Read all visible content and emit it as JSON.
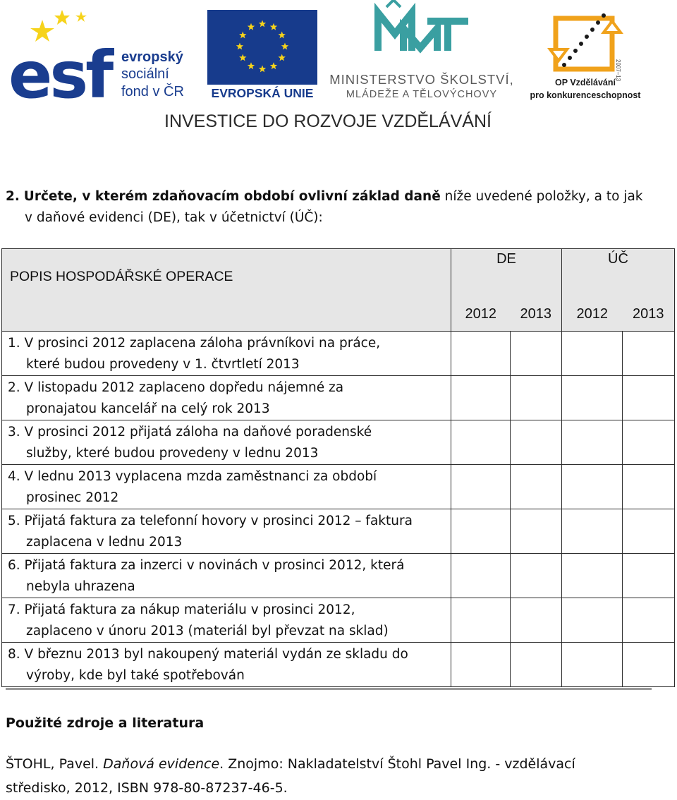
{
  "header": {
    "esf_line1": "evropský",
    "esf_line2": "sociální",
    "esf_line3": "fond v ČR",
    "eu_label": "EVROPSKÁ UNIE",
    "msmt_line1": "MINISTERSTVO ŠKOLSTVÍ,",
    "msmt_line2": "MLÁDEŽE A TĚLOVÝCHOVY",
    "op_line1": "OP Vzdělávání",
    "op_line2": "pro konkurenceschopnost",
    "op_years": "2007–13",
    "investice": "INVESTICE DO ROZVOJE VZDĚLÁVÁNÍ",
    "colors": {
      "esf_blue": "#1a3d8f",
      "eu_blue": "#173b8c",
      "eu_star": "#f6d31b",
      "msmt_teal": "#3a9fa1",
      "op_orange": "#f0a21b"
    },
    "icons": [
      "esf-logo",
      "eu-flag-logo",
      "msmt-logo",
      "op-vzdelavani-logo"
    ]
  },
  "question": {
    "number": "2.",
    "bold_text": "Určete, v kterém zdaňovacím období ovlivní základ daně",
    "rest_line1": " níže uvedené položky, a to jak",
    "line2": "v daňové evidenci (DE), tak v účetnictví (ÚČ):"
  },
  "table": {
    "header_desc": "POPIS HOSPODÁŘSKÉ OPERACE",
    "group_de": "DE",
    "group_uc": "ÚČ",
    "years": [
      "2012",
      "2013",
      "2012",
      "2013"
    ],
    "rows": [
      {
        "line1": "1. V prosinci 2012 zaplacena záloha právníkovi na práce,",
        "line2": "které budou provedeny v 1. čtvrtletí 2013"
      },
      {
        "line1": "2. V listopadu 2012 zaplaceno dopředu nájemné za",
        "line2": "pronajatou kancelář na celý rok 2013"
      },
      {
        "line1": "3. V prosinci 2012 přijatá záloha na daňové poradenské",
        "line2": "služby, které budou provedeny v lednu 2013"
      },
      {
        "line1": "4. V lednu 2013 vyplacena mzda zaměstnanci za období",
        "line2": "prosinec 2012"
      },
      {
        "line1": "5. Přijatá faktura za telefonní hovory v prosinci 2012 – faktura",
        "line2": "zaplacena v lednu 2013"
      },
      {
        "line1": "6. Přijatá faktura za inzerci v novinách v prosinci 2012, která",
        "line2": "nebyla uhrazena"
      },
      {
        "line1": "7. Přijatá faktura za nákup materiálu v prosinci 2012,",
        "line2": "zaplaceno v únoru 2013 (materiál byl převzat na sklad)"
      },
      {
        "line1": "8. V březnu 2013 byl nakoupený materiál vydán ze skladu do",
        "line2": "výroby, kde byl také spotřebován"
      }
    ]
  },
  "sources": {
    "heading": "Použité zdroje a literatura",
    "author": "ŠTOHL, Pavel. ",
    "title": "Daňová evidence",
    "rest_line1": ". Znojmo: Nakladatelství Štohl Pavel Ing. - vzdělávací",
    "line2": "středisko, 2012, ISBN 978-80-87237-46-5."
  }
}
